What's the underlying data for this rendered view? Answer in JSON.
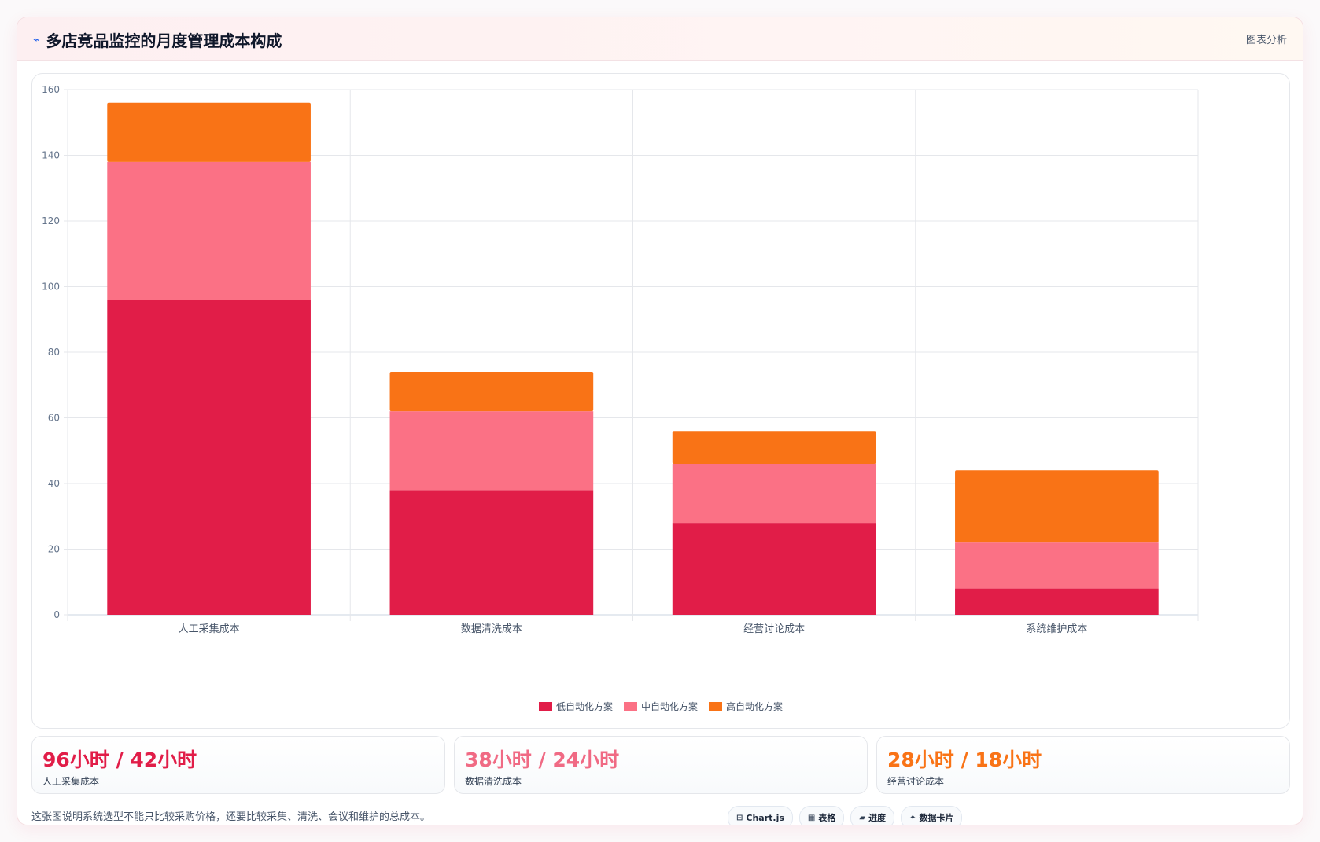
{
  "header": {
    "title": "多店竞品监控的月度管理成本构成",
    "icon": "wave-icon",
    "tag": "图表分析"
  },
  "chart_data": {
    "type": "bar",
    "stacked": true,
    "categories": [
      "人工采集成本",
      "数据清洗成本",
      "经营讨论成本",
      "系统维护成本"
    ],
    "series": [
      {
        "name": "低自动化方案",
        "color": "#e11d48",
        "values": [
          96,
          38,
          28,
          8
        ]
      },
      {
        "name": "中自动化方案",
        "color": "#fb7185",
        "values": [
          42,
          24,
          18,
          14
        ]
      },
      {
        "name": "高自动化方案",
        "color": "#f97316",
        "values": [
          18,
          12,
          10,
          22
        ]
      }
    ],
    "ylim": [
      0,
      160
    ],
    "yticks": [
      0,
      20,
      40,
      60,
      80,
      100,
      120,
      140,
      160
    ],
    "grid": true,
    "legend_position": "bottom"
  },
  "kpis": [
    {
      "value": "96小时 / 42小时",
      "label": "人工采集成本",
      "color": "#e11d48"
    },
    {
      "value": "38小时 / 24小时",
      "label": "数据清洗成本",
      "color": "#f06a84"
    },
    {
      "value": "28小时 / 18小时",
      "label": "经营讨论成本",
      "color": "#f97316"
    }
  ],
  "note": "这张图说明系统选型不能只比较采购价格，还要比较采集、清洗、会议和维护的总成本。",
  "chips": [
    {
      "icon": "chart-icon",
      "glyph": "⊟",
      "label": "Chart.js"
    },
    {
      "icon": "table-icon",
      "glyph": "▦",
      "label": "表格"
    },
    {
      "icon": "progress-icon",
      "glyph": "▰",
      "label": "进度"
    },
    {
      "icon": "sparkle-icon",
      "glyph": "✦",
      "label": "数据卡片"
    }
  ]
}
